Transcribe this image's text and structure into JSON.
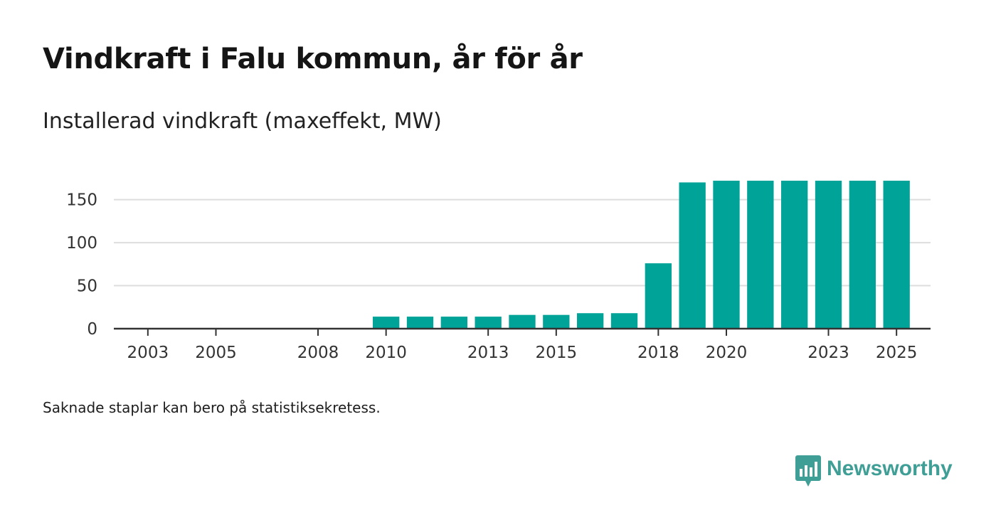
{
  "title": "Vindkraft i Falu kommun, år för år",
  "subtitle": "Installerad vindkraft (maxeffekt, MW)",
  "footnote": "Saknade staplar kan bero på statistiksekretess.",
  "brand": {
    "name": "Newsworthy",
    "logo_icon": "bar-chart-speech-bubble-icon",
    "color": "#3f9e95"
  },
  "colors": {
    "bar": "#00a398",
    "grid": "#dddddd",
    "axis": "#333333"
  },
  "chart_data": {
    "type": "bar",
    "categories": [
      2010,
      2011,
      2012,
      2013,
      2014,
      2015,
      2016,
      2017,
      2018,
      2019,
      2020,
      2021,
      2022,
      2023,
      2024,
      2025
    ],
    "values": [
      14,
      14,
      14,
      14,
      16,
      16,
      18,
      18,
      76,
      170,
      172,
      172,
      172,
      172,
      172,
      172
    ],
    "x_range": [
      2002,
      2026
    ],
    "xticks": [
      2003,
      2005,
      2008,
      2010,
      2013,
      2015,
      2018,
      2020,
      2023,
      2025
    ],
    "ylim": [
      0,
      172
    ],
    "yticks": [
      0,
      50,
      100,
      150
    ],
    "xlabel": "",
    "ylabel": "",
    "grid": true,
    "legend": "none"
  }
}
